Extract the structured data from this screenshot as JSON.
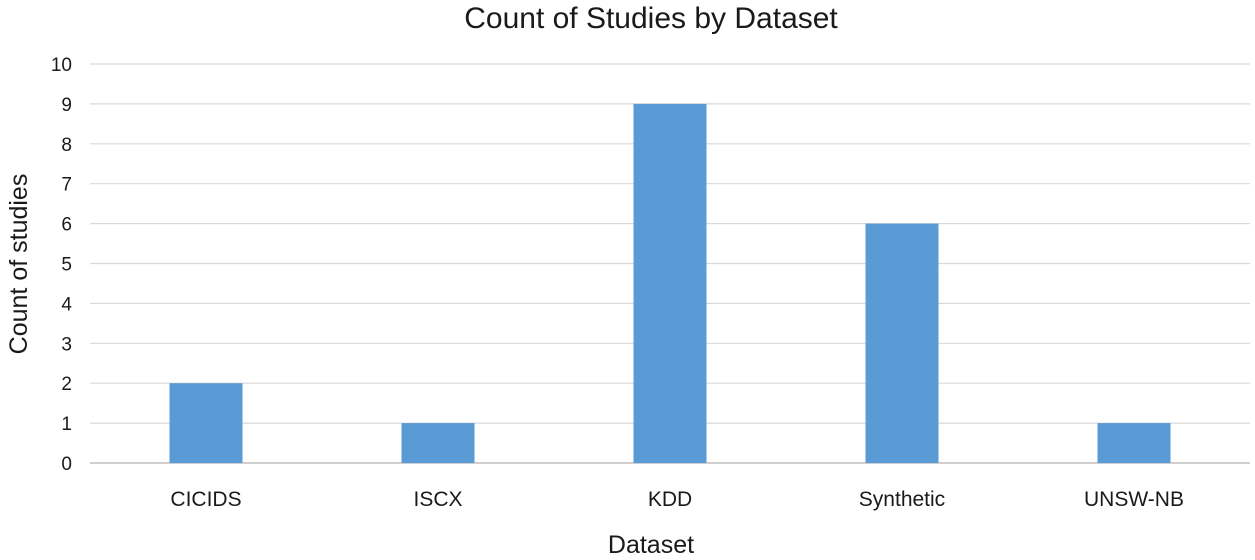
{
  "chart_data": {
    "type": "bar",
    "title": "Count of Studies by Dataset",
    "xlabel": "Dataset",
    "ylabel": "Count of studies",
    "categories": [
      "CICIDS",
      "ISCX",
      "KDD",
      "Synthetic",
      "UNSW-NB"
    ],
    "values": [
      2,
      1,
      9,
      6,
      1
    ],
    "ylim": [
      0,
      10
    ],
    "yticks": [
      "0",
      "1",
      "2",
      "3",
      "4",
      "5",
      "6",
      "7",
      "8",
      "9",
      "10"
    ],
    "grid": true,
    "legend": "none",
    "colors": {
      "bar": "#5b9bd5",
      "grid": "#d9d9d9",
      "axis": "#bfbfbf"
    }
  }
}
